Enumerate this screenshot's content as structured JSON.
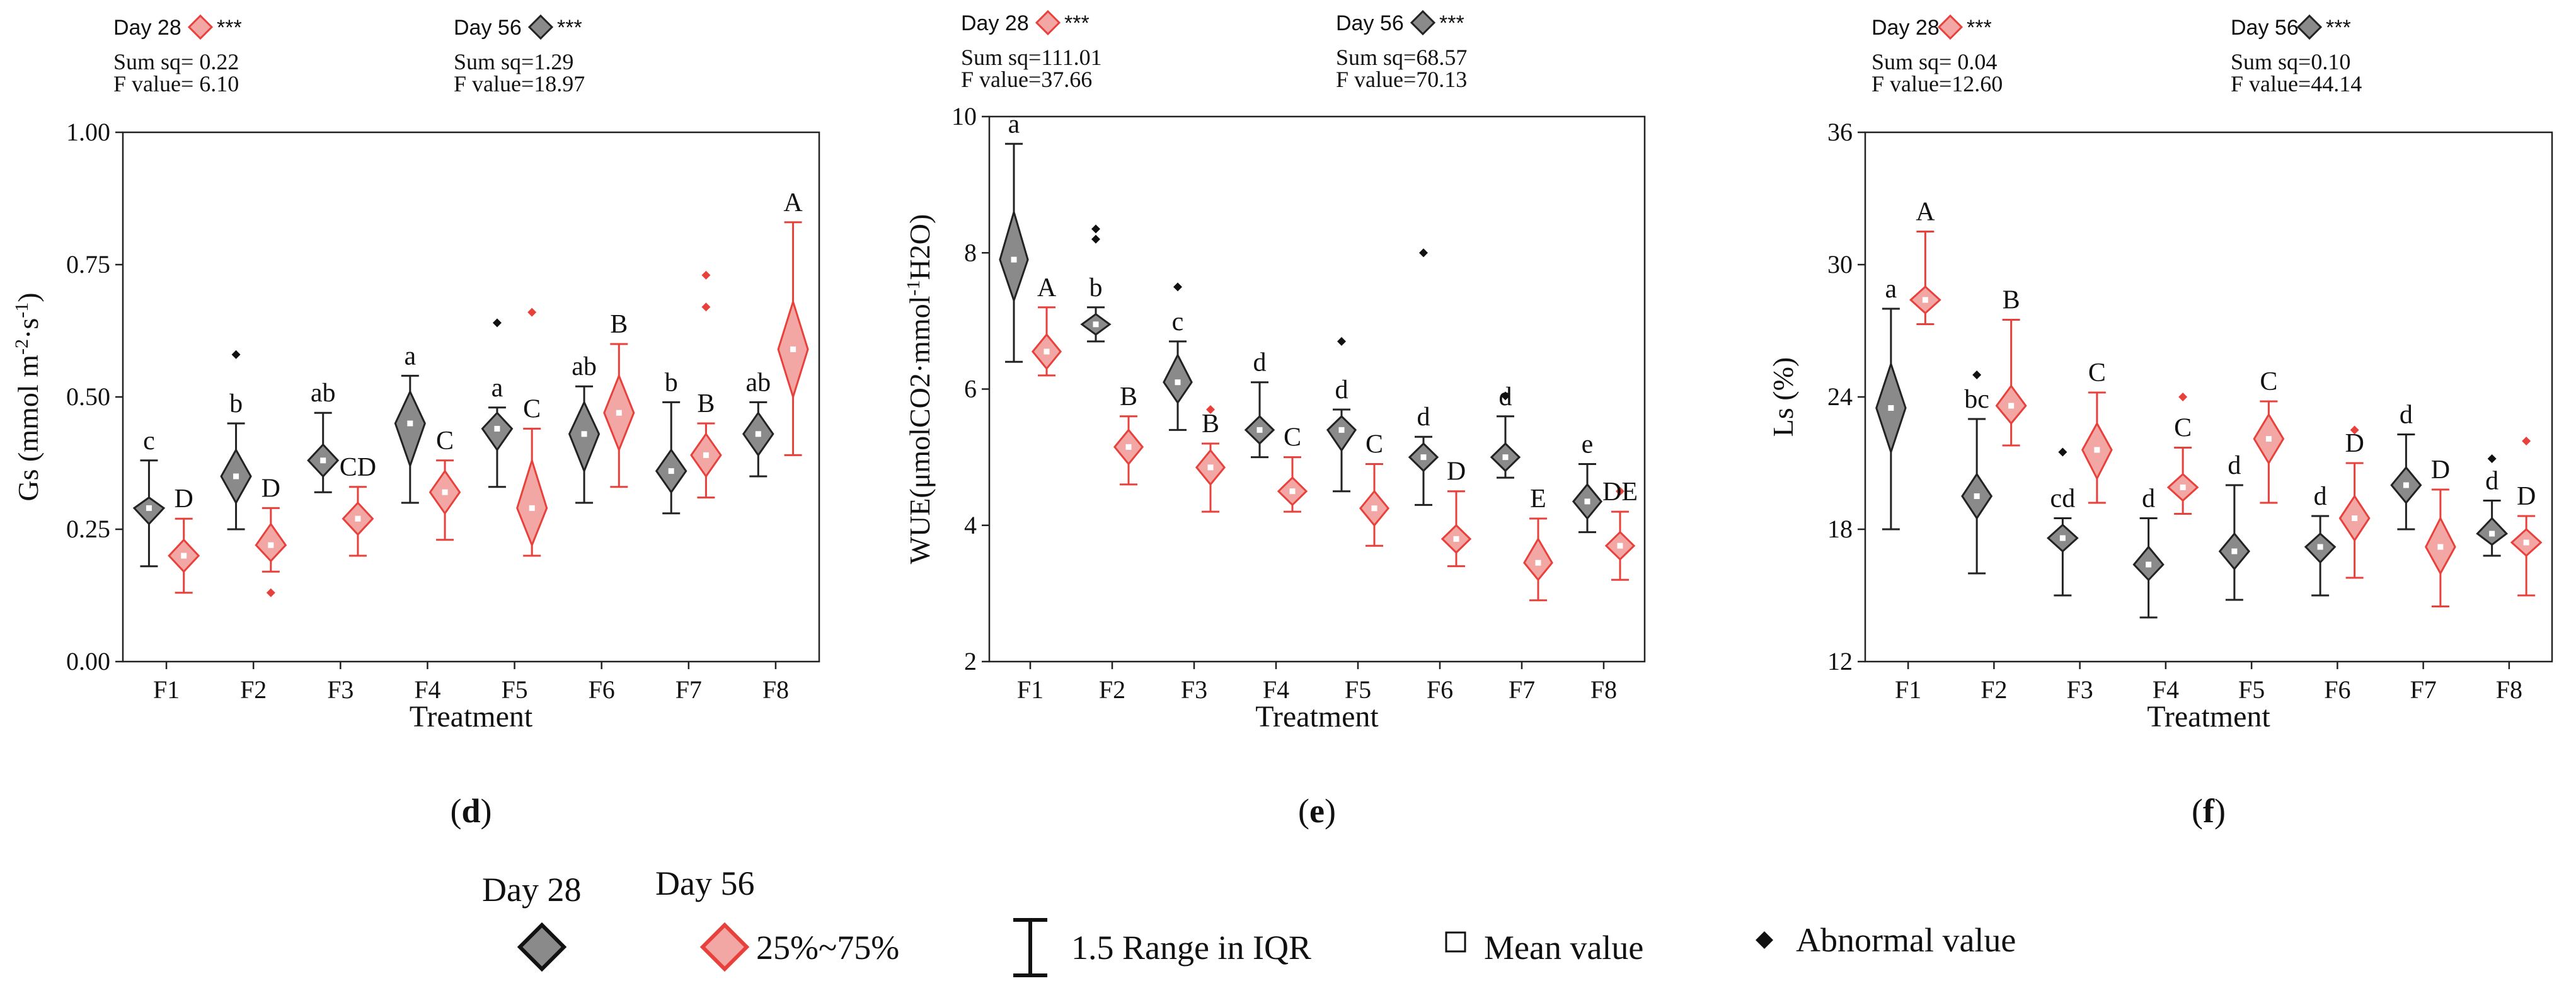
{
  "chart_data": [
    {
      "type": "violin-box",
      "panel_label": "d",
      "ylabel_main": "Gs (mmol m",
      "ylabel_sup1": "-2",
      "ylabel_mid": "·s",
      "ylabel_sup2": "-1",
      "ylabel_end": ")",
      "xlabel": "Treatment",
      "categories": [
        "F1",
        "F2",
        "F3",
        "F4",
        "F5",
        "F6",
        "F7",
        "F8"
      ],
      "ylim": [
        0,
        1.0
      ],
      "yticks": [
        0.0,
        0.25,
        0.5,
        0.75,
        1.0
      ],
      "ytick_labels": [
        "0.00",
        "0.25",
        "0.50",
        "0.75",
        "1.00"
      ],
      "stats": {
        "day28": {
          "label": "Day 28",
          "sig": "***",
          "sum_sq": "Sum sq= 0.22",
          "f_value": "F value= 6.10"
        },
        "day56": {
          "label": "Day 56",
          "sig": "***",
          "sum_sq": "Sum sq=1.29",
          "f_value": "F value=18.97"
        }
      },
      "series": [
        {
          "name": "Day 28",
          "color": "#8a8a8a",
          "groups": [
            {
              "q1": 0.26,
              "q3": 0.31,
              "lo": 0.18,
              "hi": 0.38,
              "mean": 0.29,
              "letter": "c",
              "outliers": []
            },
            {
              "q1": 0.3,
              "q3": 0.4,
              "lo": 0.25,
              "hi": 0.45,
              "mean": 0.35,
              "letter": "b",
              "outliers": [
                0.58
              ]
            },
            {
              "q1": 0.35,
              "q3": 0.41,
              "lo": 0.32,
              "hi": 0.47,
              "mean": 0.38,
              "letter": "ab",
              "outliers": []
            },
            {
              "q1": 0.37,
              "q3": 0.51,
              "lo": 0.3,
              "hi": 0.54,
              "mean": 0.45,
              "letter": "a",
              "outliers": []
            },
            {
              "q1": 0.4,
              "q3": 0.47,
              "lo": 0.33,
              "hi": 0.48,
              "mean": 0.44,
              "letter": "a",
              "outliers": [
                0.64
              ]
            },
            {
              "q1": 0.36,
              "q3": 0.49,
              "lo": 0.3,
              "hi": 0.52,
              "mean": 0.43,
              "letter": "ab",
              "outliers": []
            },
            {
              "q1": 0.32,
              "q3": 0.4,
              "lo": 0.28,
              "hi": 0.49,
              "mean": 0.36,
              "letter": "b",
              "outliers": []
            },
            {
              "q1": 0.39,
              "q3": 0.47,
              "lo": 0.35,
              "hi": 0.49,
              "mean": 0.43,
              "letter": "ab",
              "outliers": []
            }
          ]
        },
        {
          "name": "Day 56",
          "color": "#e8413c",
          "groups": [
            {
              "q1": 0.17,
              "q3": 0.23,
              "lo": 0.13,
              "hi": 0.27,
              "mean": 0.2,
              "letter": "D",
              "outliers": []
            },
            {
              "q1": 0.19,
              "q3": 0.26,
              "lo": 0.17,
              "hi": 0.29,
              "mean": 0.22,
              "letter": "D",
              "outliers": [
                0.13
              ]
            },
            {
              "q1": 0.24,
              "q3": 0.3,
              "lo": 0.2,
              "hi": 0.33,
              "mean": 0.27,
              "letter": "CD",
              "outliers": []
            },
            {
              "q1": 0.28,
              "q3": 0.36,
              "lo": 0.23,
              "hi": 0.38,
              "mean": 0.32,
              "letter": "C",
              "outliers": []
            },
            {
              "q1": 0.22,
              "q3": 0.38,
              "lo": 0.2,
              "hi": 0.44,
              "mean": 0.29,
              "letter": "C",
              "outliers": [
                0.66
              ]
            },
            {
              "q1": 0.4,
              "q3": 0.54,
              "lo": 0.33,
              "hi": 0.6,
              "mean": 0.47,
              "letter": "B",
              "outliers": []
            },
            {
              "q1": 0.35,
              "q3": 0.43,
              "lo": 0.31,
              "hi": 0.45,
              "mean": 0.39,
              "letter": "B",
              "outliers": [
                0.67,
                0.73
              ]
            },
            {
              "q1": 0.5,
              "q3": 0.68,
              "lo": 0.39,
              "hi": 0.83,
              "mean": 0.59,
              "letter": "A",
              "outliers": []
            }
          ]
        }
      ]
    },
    {
      "type": "violin-box",
      "panel_label": "e",
      "ylabel_main": "WUE(μmolCO2·mmol",
      "ylabel_sup1": "-1",
      "ylabel_mid": "H2O)",
      "ylabel_sup2": "",
      "ylabel_end": "",
      "xlabel": "Treatment",
      "categories": [
        "F1",
        "F2",
        "F3",
        "F4",
        "F5",
        "F6",
        "F7",
        "F8"
      ],
      "ylim": [
        2,
        10
      ],
      "yticks": [
        2,
        4,
        6,
        8,
        10
      ],
      "ytick_labels": [
        "2",
        "4",
        "6",
        "8",
        "10"
      ],
      "stats": {
        "day28": {
          "label": "Day 28",
          "sig": "***",
          "sum_sq": "Sum sq=111.01",
          "f_value": "F value=37.66"
        },
        "day56": {
          "label": "Day 56",
          "sig": "***",
          "sum_sq": "Sum sq=68.57",
          "f_value": "F value=70.13"
        }
      },
      "series": [
        {
          "name": "Day 28",
          "color": "#8a8a8a",
          "groups": [
            {
              "q1": 7.3,
              "q3": 8.6,
              "lo": 6.4,
              "hi": 9.6,
              "mean": 7.9,
              "letter": "a",
              "outliers": []
            },
            {
              "q1": 6.8,
              "q3": 7.1,
              "lo": 6.7,
              "hi": 7.2,
              "mean": 6.95,
              "letter": "b",
              "outliers": [
                8.2,
                8.35
              ]
            },
            {
              "q1": 5.8,
              "q3": 6.5,
              "lo": 5.4,
              "hi": 6.7,
              "mean": 6.1,
              "letter": "c",
              "outliers": [
                7.5
              ]
            },
            {
              "q1": 5.2,
              "q3": 5.6,
              "lo": 5.0,
              "hi": 6.1,
              "mean": 5.4,
              "letter": "d",
              "outliers": []
            },
            {
              "q1": 5.1,
              "q3": 5.6,
              "lo": 4.5,
              "hi": 5.7,
              "mean": 5.4,
              "letter": "d",
              "outliers": [
                6.7
              ]
            },
            {
              "q1": 4.8,
              "q3": 5.2,
              "lo": 4.3,
              "hi": 5.3,
              "mean": 5.0,
              "letter": "d",
              "outliers": [
                8.0
              ]
            },
            {
              "q1": 4.8,
              "q3": 5.2,
              "lo": 4.7,
              "hi": 5.6,
              "mean": 5.0,
              "letter": "d",
              "outliers": [
                5.9
              ]
            },
            {
              "q1": 4.1,
              "q3": 4.6,
              "lo": 3.9,
              "hi": 4.9,
              "mean": 4.35,
              "letter": "e",
              "outliers": []
            }
          ]
        },
        {
          "name": "Day 56",
          "color": "#e8413c",
          "groups": [
            {
              "q1": 6.3,
              "q3": 6.8,
              "lo": 6.2,
              "hi": 7.2,
              "mean": 6.55,
              "letter": "A",
              "outliers": []
            },
            {
              "q1": 4.9,
              "q3": 5.4,
              "lo": 4.6,
              "hi": 5.6,
              "mean": 5.15,
              "letter": "B",
              "outliers": []
            },
            {
              "q1": 4.6,
              "q3": 5.1,
              "lo": 4.2,
              "hi": 5.2,
              "mean": 4.85,
              "letter": "B",
              "outliers": [
                5.7
              ]
            },
            {
              "q1": 4.3,
              "q3": 4.7,
              "lo": 4.2,
              "hi": 5.0,
              "mean": 4.5,
              "letter": "C",
              "outliers": []
            },
            {
              "q1": 4.0,
              "q3": 4.5,
              "lo": 3.7,
              "hi": 4.9,
              "mean": 4.25,
              "letter": "C",
              "outliers": []
            },
            {
              "q1": 3.6,
              "q3": 4.0,
              "lo": 3.4,
              "hi": 4.5,
              "mean": 3.8,
              "letter": "D",
              "outliers": []
            },
            {
              "q1": 3.2,
              "q3": 3.8,
              "lo": 2.9,
              "hi": 4.1,
              "mean": 3.45,
              "letter": "E",
              "outliers": []
            },
            {
              "q1": 3.5,
              "q3": 3.9,
              "lo": 3.2,
              "hi": 4.2,
              "mean": 3.7,
              "letter": "DE",
              "outliers": [
                4.5
              ]
            }
          ]
        }
      ]
    },
    {
      "type": "violin-box",
      "panel_label": "f",
      "ylabel_main": "Ls (%)",
      "ylabel_sup1": "",
      "ylabel_mid": "",
      "ylabel_sup2": "",
      "ylabel_end": "",
      "xlabel": "Treatment",
      "categories": [
        "F1",
        "F2",
        "F3",
        "F4",
        "F5",
        "F6",
        "F7",
        "F8"
      ],
      "ylim": [
        12,
        36
      ],
      "yticks": [
        12,
        18,
        24,
        30,
        36
      ],
      "ytick_labels": [
        "12",
        "18",
        "24",
        "30",
        "36"
      ],
      "stats": {
        "day28": {
          "label": "Day 28",
          "sig": "***",
          "sum_sq": "Sum sq= 0.04",
          "f_value": "F value=12.60"
        },
        "day56": {
          "label": "Day 56",
          "sig": "***",
          "sum_sq": "Sum sq=0.10",
          "f_value": "F value=44.14"
        }
      },
      "series": [
        {
          "name": "Day 28",
          "color": "#8a8a8a",
          "groups": [
            {
              "q1": 21.5,
              "q3": 25.5,
              "lo": 18.0,
              "hi": 28.0,
              "mean": 23.5,
              "letter": "a",
              "outliers": []
            },
            {
              "q1": 18.5,
              "q3": 20.5,
              "lo": 16.0,
              "hi": 23.0,
              "mean": 19.5,
              "letter": "bc",
              "outliers": [
                25.0
              ]
            },
            {
              "q1": 17.0,
              "q3": 18.2,
              "lo": 15.0,
              "hi": 18.5,
              "mean": 17.6,
              "letter": "cd",
              "outliers": [
                21.5
              ]
            },
            {
              "q1": 15.7,
              "q3": 17.2,
              "lo": 14.0,
              "hi": 18.5,
              "mean": 16.4,
              "letter": "d",
              "outliers": []
            },
            {
              "q1": 16.2,
              "q3": 17.8,
              "lo": 14.8,
              "hi": 20.0,
              "mean": 17.0,
              "letter": "d",
              "outliers": []
            },
            {
              "q1": 16.5,
              "q3": 17.8,
              "lo": 15.0,
              "hi": 18.6,
              "mean": 17.2,
              "letter": "d",
              "outliers": []
            },
            {
              "q1": 19.2,
              "q3": 20.8,
              "lo": 18.0,
              "hi": 22.3,
              "mean": 20.0,
              "letter": "d",
              "outliers": []
            },
            {
              "q1": 17.3,
              "q3": 18.5,
              "lo": 16.8,
              "hi": 19.3,
              "mean": 17.8,
              "letter": "d",
              "outliers": [
                21.2
              ]
            }
          ]
        },
        {
          "name": "Day 56",
          "color": "#e8413c",
          "groups": [
            {
              "q1": 27.8,
              "q3": 29.0,
              "lo": 27.3,
              "hi": 31.5,
              "mean": 28.4,
              "letter": "A",
              "outliers": []
            },
            {
              "q1": 22.8,
              "q3": 24.5,
              "lo": 21.8,
              "hi": 27.5,
              "mean": 23.6,
              "letter": "B",
              "outliers": []
            },
            {
              "q1": 20.3,
              "q3": 22.8,
              "lo": 19.2,
              "hi": 24.2,
              "mean": 21.6,
              "letter": "C",
              "outliers": []
            },
            {
              "q1": 19.3,
              "q3": 20.5,
              "lo": 18.7,
              "hi": 21.7,
              "mean": 19.9,
              "letter": "C",
              "outliers": [
                24.0
              ]
            },
            {
              "q1": 21.0,
              "q3": 23.2,
              "lo": 19.2,
              "hi": 23.8,
              "mean": 22.1,
              "letter": "C",
              "outliers": []
            },
            {
              "q1": 17.5,
              "q3": 19.5,
              "lo": 15.8,
              "hi": 21.0,
              "mean": 18.5,
              "letter": "D",
              "outliers": [
                22.5
              ]
            },
            {
              "q1": 16.0,
              "q3": 18.5,
              "lo": 14.5,
              "hi": 19.8,
              "mean": 17.2,
              "letter": "D",
              "outliers": []
            },
            {
              "q1": 16.8,
              "q3": 18.0,
              "lo": 15.0,
              "hi": 18.6,
              "mean": 17.4,
              "letter": "D",
              "outliers": [
                22.0
              ]
            }
          ]
        }
      ]
    }
  ],
  "legend": {
    "day28_label": "Day 28",
    "day56_label": "Day 56",
    "iqr_label": "25%~75%",
    "range_label": "1.5 Range in IQR",
    "mean_label": "Mean value",
    "abnormal_label": "Abnormal value",
    "day28_color": "#8a8a8a",
    "day56_color": "#e8413c"
  }
}
